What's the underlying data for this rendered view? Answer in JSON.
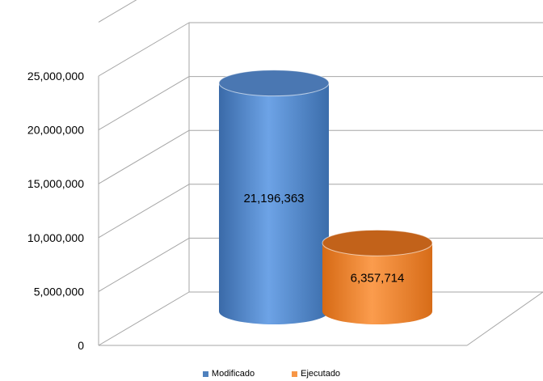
{
  "chart_data": {
    "type": "bar",
    "style": "3d-cylinder",
    "categories": [
      "Modificado",
      "Ejecutado"
    ],
    "values": [
      21196363,
      6357714
    ],
    "value_labels": [
      "21,196,363",
      "6,357,714"
    ],
    "ylim": [
      0,
      25000000
    ],
    "yticks": [
      0,
      5000000,
      10000000,
      15000000,
      20000000,
      25000000
    ],
    "ytick_labels": [
      "0",
      "5,000,000",
      "10,000,000",
      "15,000,000",
      "20,000,000",
      "25,000,000"
    ],
    "grid": true,
    "legend_position": "bottom",
    "series": [
      {
        "name": "Modificado",
        "color": "#4F81BD",
        "value": 21196363
      },
      {
        "name": "Ejecutado",
        "color": "#F79646",
        "value": 6357714
      }
    ]
  },
  "legend": {
    "items": [
      {
        "label": "Modificado",
        "color": "#4F81BD"
      },
      {
        "label": "Ejecutado",
        "color": "#F79646"
      }
    ]
  }
}
